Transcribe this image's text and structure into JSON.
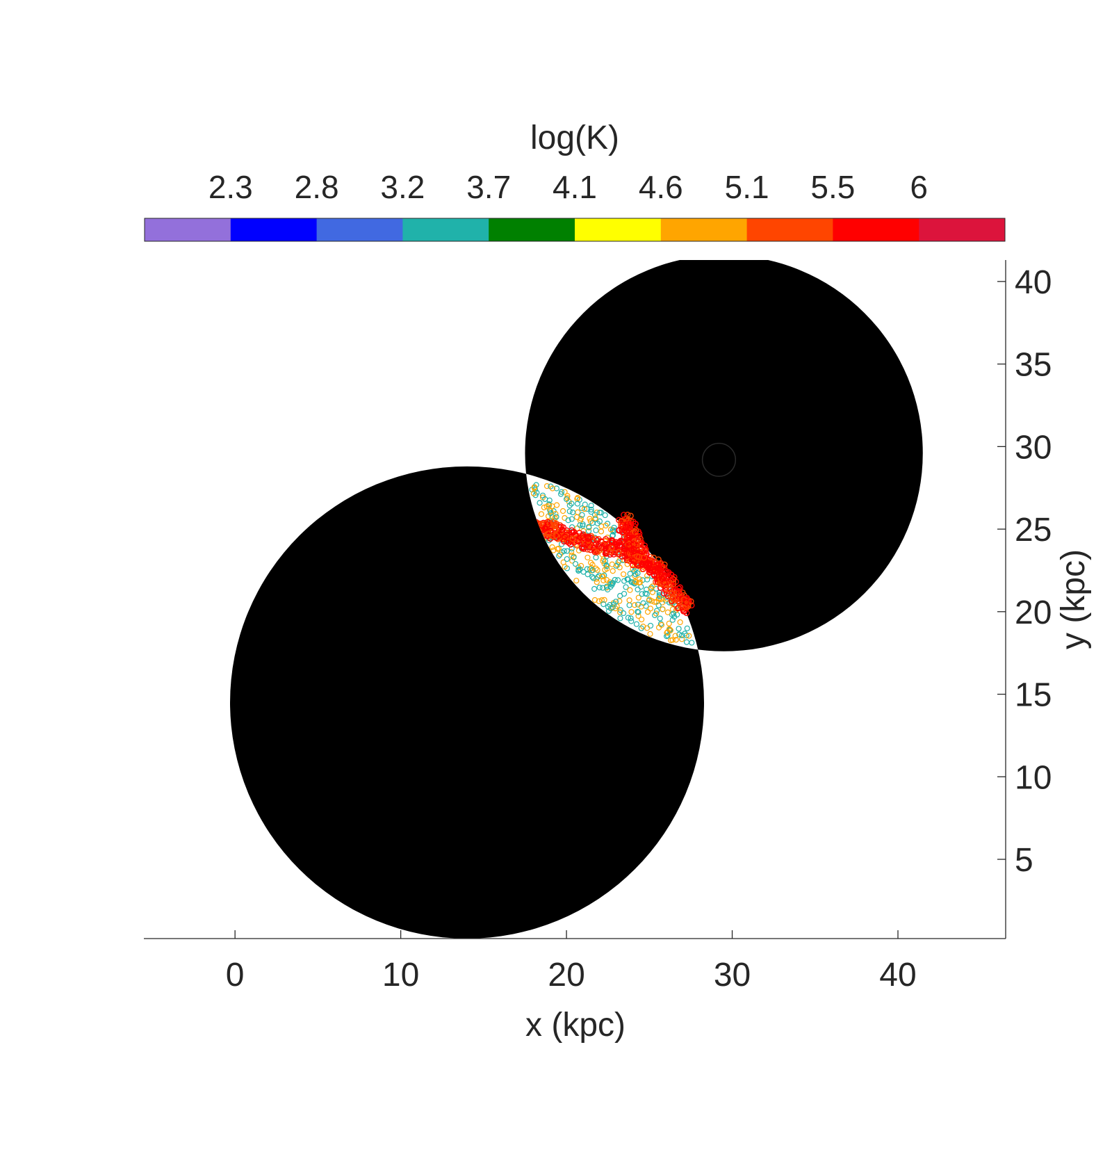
{
  "chart_data": {
    "type": "scatter",
    "title": "",
    "xlabel": "x (kpc)",
    "ylabel": "y (kpc)",
    "xlim": [
      -5.5,
      46.5
    ],
    "ylim": [
      0.2,
      41.3
    ],
    "xticks": [
      0,
      10,
      20,
      30,
      40
    ],
    "yticks": [
      5,
      10,
      15,
      20,
      25,
      30,
      35,
      40
    ],
    "grid": false,
    "y_axis_location": "right",
    "colorbar": {
      "label": "log(K)",
      "location": "top",
      "tick_labels": [
        "2.3",
        "2.8",
        "3.2",
        "3.7",
        "4.1",
        "4.6",
        "5.1",
        "5.5",
        "6"
      ],
      "range": [
        2.07,
        6.24
      ],
      "colors": [
        "#9370DB",
        "#0000FF",
        "#4169E1",
        "#20B2AA",
        "#008000",
        "#FFFF00",
        "#FFA500",
        "#FF4500",
        "#FF0000",
        "#DC143C"
      ]
    },
    "discs": [
      {
        "name": "",
        "center": [
          14.0,
          14.5
        ],
        "radius": 14.3,
        "color": "#000000"
      },
      {
        "name": "",
        "center": [
          29.5,
          29.6
        ],
        "radius": 12.0,
        "color": "#000000"
      }
    ],
    "core_marker": {
      "center": [
        29.2,
        29.2
      ],
      "radius": 1.0
    },
    "overlap_region_points": {
      "description_colors": [
        "#20B2AA",
        "#FFA500",
        "#FF4500",
        "#FF0000"
      ],
      "dense_band": [
        [
          17.8,
          25.0
        ],
        [
          19.0,
          25.0
        ],
        [
          20.5,
          24.5
        ],
        [
          22.0,
          24.0
        ],
        [
          23.5,
          23.8
        ],
        [
          24.5,
          23.2
        ],
        [
          25.5,
          22.5
        ],
        [
          26.5,
          21.3
        ],
        [
          27.2,
          20.3
        ],
        [
          23.4,
          25.5
        ],
        [
          24.0,
          24.5
        ]
      ],
      "scatter_extent": {
        "x": [
          17.8,
          27.8
        ],
        "y": [
          17.8,
          27.8
        ]
      }
    }
  }
}
